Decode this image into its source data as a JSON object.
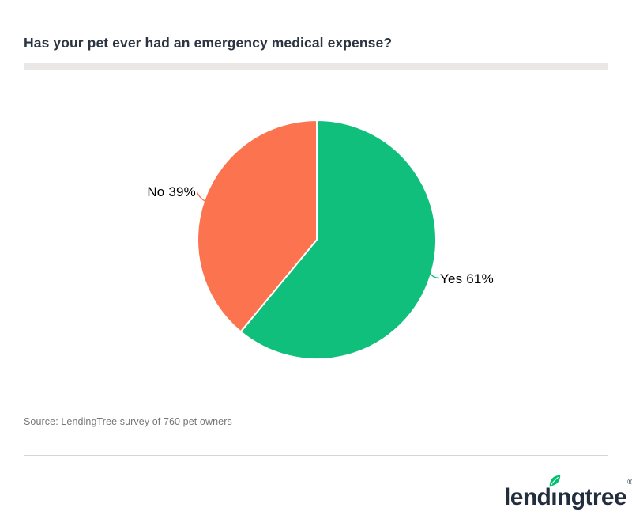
{
  "header": {
    "title": "Has your pet ever had an emergency medical expense?"
  },
  "chart_data": {
    "type": "pie",
    "title": "Has your pet ever had an emergency medical expense?",
    "start_angle_deg": 0,
    "direction": "clockwise",
    "legend_position": "none",
    "slices": [
      {
        "label": "Yes",
        "value": 61,
        "display": "Yes 61%",
        "color": "#10bf7c"
      },
      {
        "label": "No",
        "value": 39,
        "display": "No 39%",
        "color": "#fc744f"
      }
    ]
  },
  "footer": {
    "source": "Source: LendingTree survey of 760 pet owners",
    "logo": {
      "brand": "lendingtree",
      "part1": "lend",
      "part2": "ıngtree",
      "reg": "®",
      "leaf_color": "#00c06d",
      "text_color": "#222d3d"
    }
  },
  "colors": {
    "title_text": "#2b3441",
    "title_bar": "#e9e8e6",
    "source_text": "#76777a",
    "divider": "#d6d5d3",
    "background": "#ffffff"
  }
}
